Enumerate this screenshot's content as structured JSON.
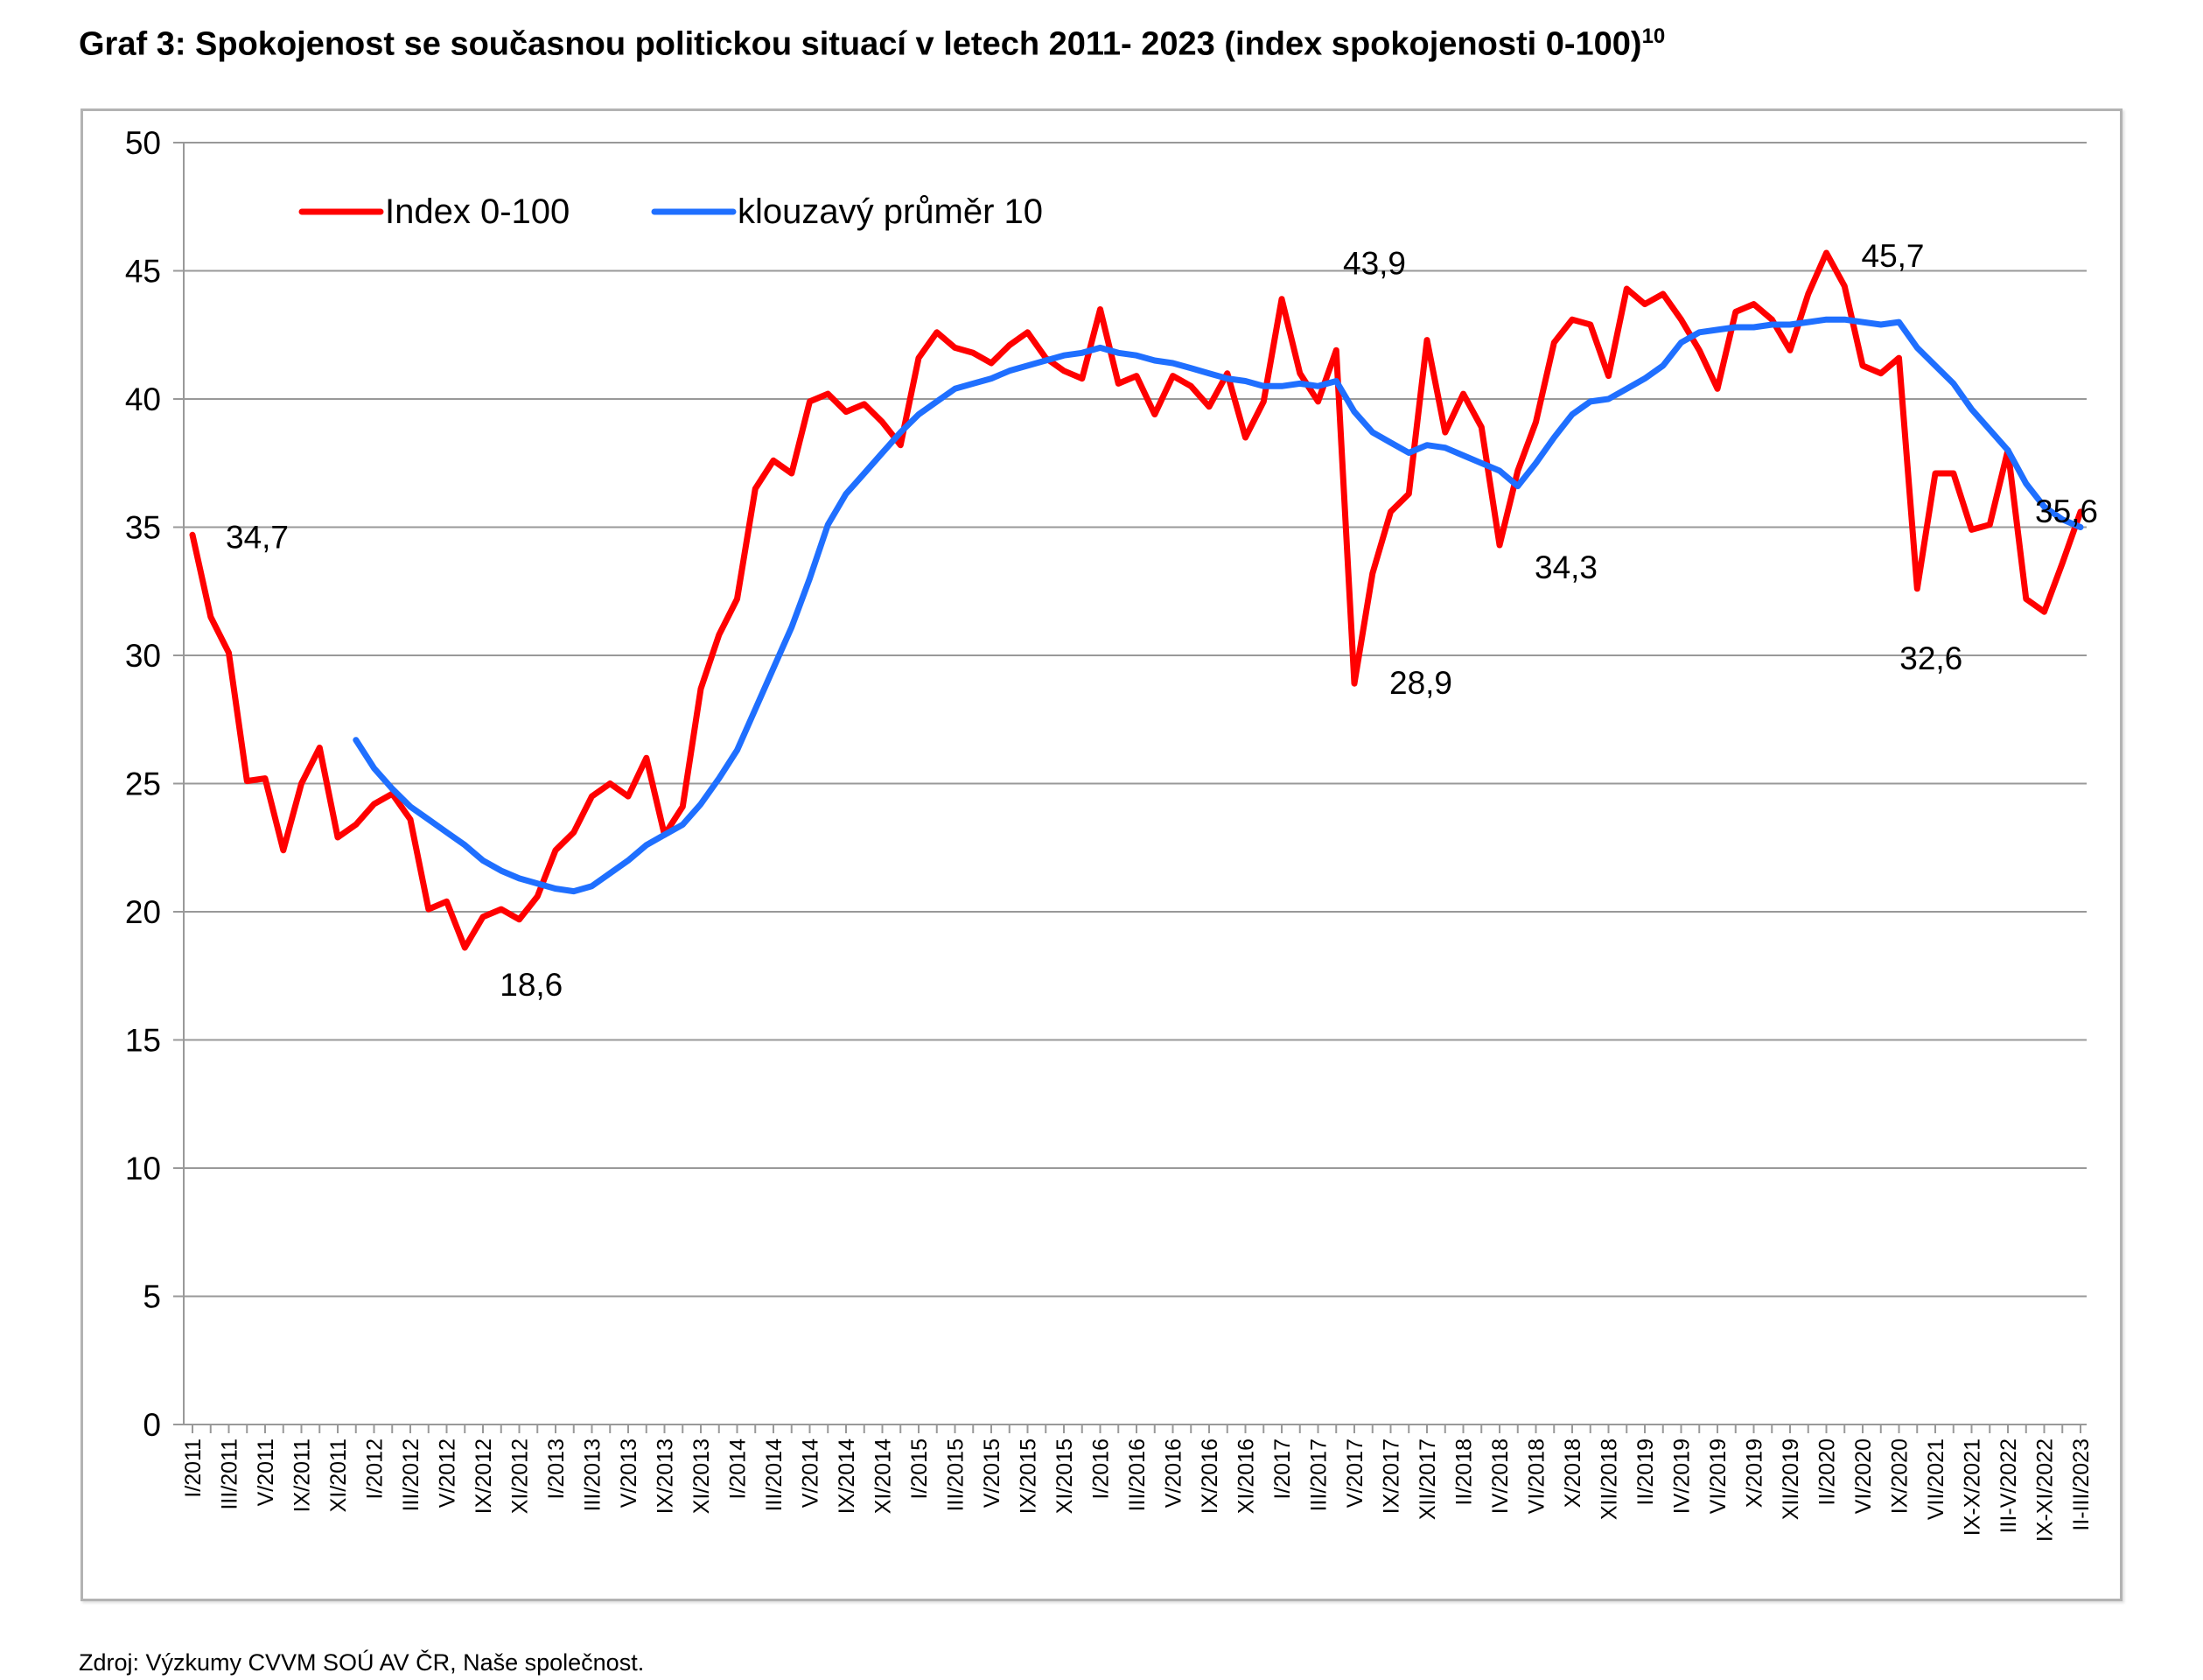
{
  "title": "Graf 3: Spokojenost se současnou politickou situací v letech 2011- 2023 (index spokojenosti 0-100)",
  "title_footnote": "10",
  "source": "Zdroj: Výzkumy CVVM SOÚ AV ČR, Naše společnost.",
  "chart_data": {
    "type": "line",
    "ylim": [
      0,
      50
    ],
    "yticks": [
      0,
      5,
      10,
      15,
      20,
      25,
      30,
      35,
      40,
      45,
      50
    ],
    "grid": true,
    "legend_position": "top-left",
    "x_tick_labels": [
      "I/2011",
      "III/2011",
      "V/2011",
      "IX/2011",
      "XI/2011",
      "I/2012",
      "III/2012",
      "V/2012",
      "IX/2012",
      "XI/2012",
      "I/2013",
      "III/2013",
      "V/2013",
      "IX/2013",
      "XI/2013",
      "I/2014",
      "III/2014",
      "V/2014",
      "IX/2014",
      "XI/2014",
      "I/2015",
      "III/2015",
      "V/2015",
      "IX/2015",
      "XI/2015",
      "I/2016",
      "III/2016",
      "V/2016",
      "IX/2016",
      "XI/2016",
      "I/2017",
      "III/2017",
      "V/2017",
      "IX/2017",
      "XII/2017",
      "II/2018",
      "IV/2018",
      "VI/2018",
      "X/2018",
      "XII/2018",
      "II/2019",
      "IV/2019",
      "VI/2019",
      "X/2019",
      "XII/2019",
      "II/2020",
      "VI/2020",
      "IX/2020",
      "VII/2021",
      "IX-X/2021",
      "III-V/2022",
      "IX-XI/2022",
      "II-III/2023"
    ],
    "series": [
      {
        "name": "Index 0-100",
        "color": "#ff0000",
        "values": [
          34.7,
          31.5,
          30.1,
          25.1,
          25.2,
          22.4,
          25.0,
          26.4,
          22.9,
          23.4,
          24.2,
          24.6,
          23.6,
          20.1,
          20.4,
          18.6,
          19.8,
          20.1,
          19.7,
          20.6,
          22.4,
          23.1,
          24.5,
          25.0,
          24.5,
          26.0,
          23.0,
          24.1,
          28.7,
          30.8,
          32.2,
          36.5,
          37.6,
          37.1,
          39.9,
          40.2,
          39.5,
          39.8,
          39.1,
          38.2,
          41.6,
          42.6,
          42.0,
          41.8,
          41.4,
          42.1,
          42.6,
          41.6,
          41.1,
          40.8,
          43.5,
          40.6,
          40.9,
          39.4,
          40.9,
          40.5,
          39.7,
          41.0,
          38.5,
          39.9,
          43.9,
          41.0,
          39.9,
          41.9,
          28.9,
          33.2,
          35.6,
          36.3,
          42.3,
          38.7,
          40.2,
          38.9,
          34.3,
          37.2,
          39.1,
          42.2,
          43.1,
          42.9,
          40.9,
          44.3,
          43.7,
          44.1,
          43.1,
          41.9,
          40.4,
          43.4,
          43.7,
          43.1,
          41.9,
          44.1,
          45.7,
          44.4,
          41.3,
          41.0,
          41.6,
          32.6,
          37.1,
          37.1,
          34.9,
          35.1,
          38.0,
          32.2,
          31.7,
          33.6,
          35.6
        ]
      },
      {
        "name": "klouzavý průměr 10",
        "color": "#1f6fff",
        "values": [
          null,
          null,
          null,
          null,
          null,
          null,
          null,
          null,
          null,
          26.7,
          25.6,
          24.8,
          24.1,
          23.6,
          23.1,
          22.6,
          22.0,
          21.6,
          21.3,
          21.1,
          20.9,
          20.8,
          21.0,
          21.5,
          22.0,
          22.6,
          23.0,
          23.4,
          24.2,
          25.2,
          26.3,
          27.9,
          29.5,
          31.1,
          33.0,
          35.1,
          36.3,
          37.1,
          37.9,
          38.7,
          39.4,
          39.9,
          40.4,
          40.6,
          40.8,
          41.1,
          41.3,
          41.5,
          41.7,
          41.8,
          42.0,
          41.8,
          41.7,
          41.5,
          41.4,
          41.2,
          41.0,
          40.8,
          40.7,
          40.5,
          40.5,
          40.6,
          40.5,
          40.7,
          39.5,
          38.7,
          38.3,
          37.9,
          38.2,
          38.1,
          37.8,
          37.5,
          37.2,
          36.6,
          37.5,
          38.5,
          39.4,
          39.9,
          40.0,
          40.4,
          40.8,
          41.3,
          42.2,
          42.6,
          42.7,
          42.8,
          42.8,
          42.9,
          42.9,
          43.0,
          43.1,
          43.1,
          43.0,
          42.9,
          43.0,
          42.0,
          41.3,
          40.6,
          39.6,
          38.8,
          38.0,
          36.7,
          35.8,
          35.3,
          35.0
        ]
      }
    ],
    "annotations": [
      "34,7",
      "18,6",
      "43,9",
      "28,9",
      "34,3",
      "45,7",
      "32,6",
      "35,6"
    ]
  }
}
